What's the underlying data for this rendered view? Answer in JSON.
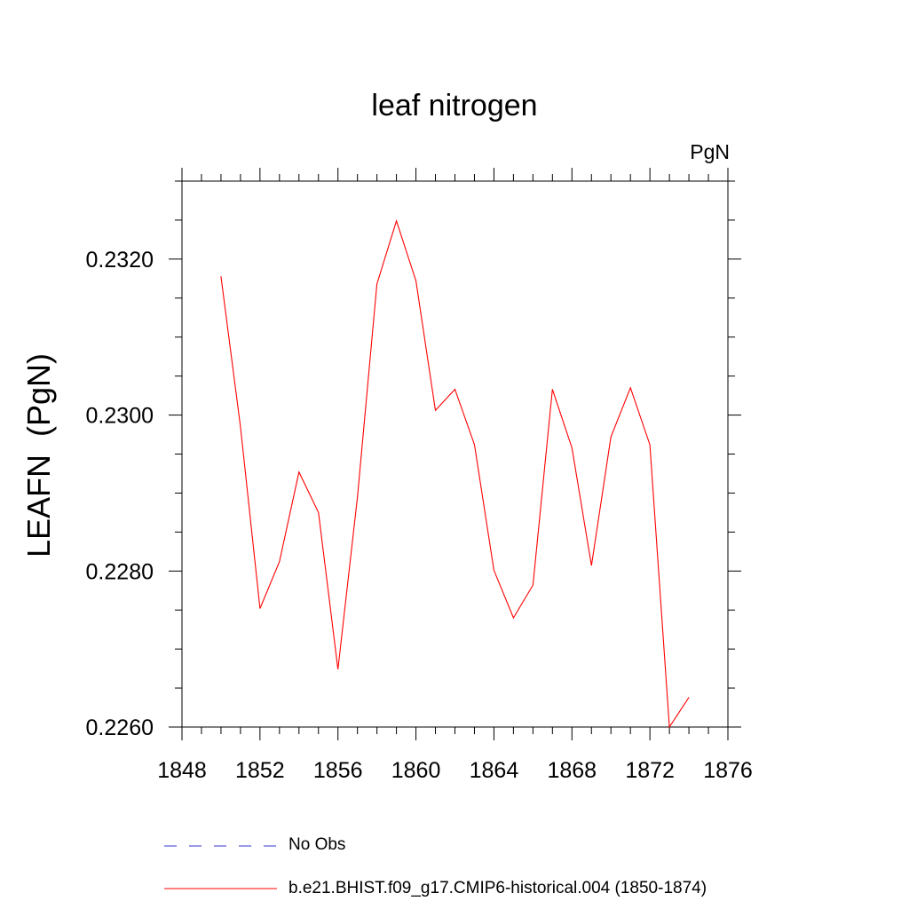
{
  "chart_data": {
    "type": "line",
    "title": "leaf nitrogen",
    "units_label": "PgN",
    "ylabel": "LEAFN  (PgN)",
    "xlim": [
      1848,
      1876
    ],
    "ylim": [
      0.226,
      0.233
    ],
    "x_ticks": [
      "1848",
      "1852",
      "1856",
      "1860",
      "1864",
      "1868",
      "1872",
      "1876"
    ],
    "y_ticks": [
      "0.2260",
      "0.2280",
      "0.2300",
      "0.2320"
    ],
    "series": [
      {
        "name": "b.e21.BHIST.f09_g17.CMIP6-historical.004 (1850-1874)",
        "color": "#ff0000",
        "x": [
          1850,
          1851,
          1852,
          1853,
          1854,
          1855,
          1856,
          1857,
          1858,
          1859,
          1860,
          1861,
          1862,
          1863,
          1864,
          1865,
          1866,
          1867,
          1868,
          1869,
          1870,
          1871,
          1872,
          1873,
          1874
        ],
        "y": [
          0.23178,
          0.22985,
          0.22752,
          0.22812,
          0.22927,
          0.22875,
          0.22674,
          0.22895,
          0.23168,
          0.23249,
          0.23172,
          0.23006,
          0.23033,
          0.22962,
          0.22801,
          0.2274,
          0.22782,
          0.23033,
          0.22958,
          0.22807,
          0.22972,
          0.23035,
          0.22962,
          0.226,
          0.22638
        ]
      }
    ],
    "legend": [
      {
        "label": "No Obs",
        "color": "#3333cc",
        "style": "dashed"
      },
      {
        "label": "b.e21.BHIST.f09_g17.CMIP6-historical.004 (1850-1874)",
        "color": "#ff0000",
        "style": "solid"
      }
    ],
    "legend_position": "bottom",
    "grid": false
  }
}
